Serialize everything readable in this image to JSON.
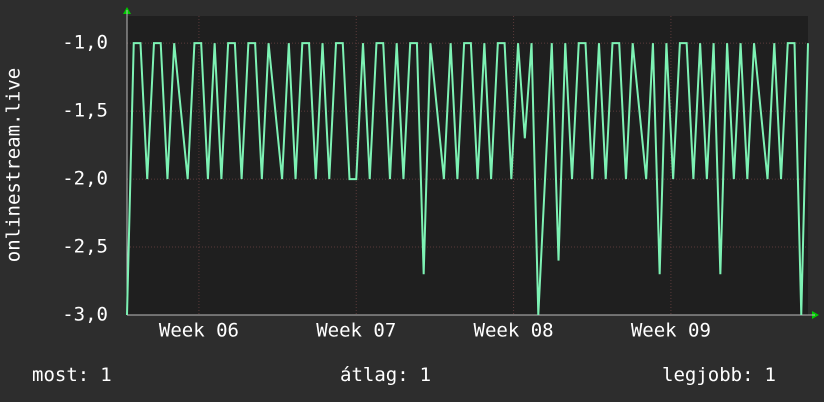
{
  "chart_data": {
    "type": "line",
    "y_label": "onlinestream.live",
    "x": [
      0,
      0.3,
      0.6,
      0.9,
      1.2,
      1.5,
      1.8,
      2.1,
      2.4,
      2.7,
      3,
      3.3,
      3.6,
      3.9,
      4.2,
      4.5,
      4.8,
      5.1,
      5.4,
      5.7,
      6,
      6.3,
      6.6,
      6.9,
      7.2,
      7.5,
      7.8,
      8.1,
      8.4,
      8.7,
      9,
      9.3,
      9.6,
      9.9,
      10.2,
      10.5,
      10.8,
      11.1,
      11.4,
      11.7,
      12,
      12.3,
      12.6,
      12.9,
      13.2,
      13.5,
      13.8,
      14.1,
      14.4,
      14.7,
      15,
      15.3,
      15.6,
      15.9,
      16.2,
      16.5,
      16.8,
      17.1,
      17.4,
      17.7,
      18,
      18.3,
      18.6,
      18.9,
      19.2,
      19.5,
      19.8,
      20.1,
      20.4,
      20.7,
      21,
      21.3,
      21.6,
      21.9,
      22.2,
      22.5,
      22.8,
      23.1,
      23.4,
      23.7,
      24,
      24.3,
      24.6,
      24.9,
      25.2,
      25.5,
      25.8,
      26.1,
      26.4,
      26.7,
      27,
      27.3,
      27.6,
      27.9,
      28.2,
      28.5,
      28.8,
      29.1,
      29.4,
      29.7,
      30,
      30.3
    ],
    "series": [
      {
        "color": "#7df2b4",
        "values": [
          -3,
          -1,
          -1,
          -2,
          -1,
          -1,
          -2,
          -1,
          -1.5,
          -2,
          -1,
          -1,
          -2,
          -1,
          -2,
          -1,
          -1,
          -2,
          -1,
          -1,
          -2,
          -1,
          -1.5,
          -2,
          -1,
          -2,
          -1,
          -1,
          -2,
          -1,
          -2,
          -1,
          -1,
          -2,
          -2,
          -1,
          -2,
          -1,
          -1,
          -2,
          -1,
          -2,
          -1,
          -1,
          -2.7,
          -1,
          -1.5,
          -2,
          -1,
          -2,
          -1,
          -1,
          -2,
          -1,
          -2,
          -1,
          -1,
          -2,
          -1,
          -1.7,
          -1,
          -3,
          -2,
          -1,
          -2.6,
          -1,
          -2,
          -1,
          -1,
          -2,
          -1,
          -2,
          -1,
          -1,
          -2,
          -1,
          -1.5,
          -2,
          -1,
          -2.7,
          -1,
          -2,
          -1,
          -1,
          -2,
          -1,
          -2,
          -1,
          -2.7,
          -1,
          -2,
          -1,
          -2,
          -1,
          -1.5,
          -2,
          -1,
          -2,
          -1,
          -1,
          -3,
          -1
        ]
      }
    ],
    "xlim": [
      0,
      30.3
    ],
    "xticks": [
      {
        "value": 3.2,
        "label": "Week 06"
      },
      {
        "value": 10.2,
        "label": "Week 07"
      },
      {
        "value": 17.2,
        "label": "Week 08"
      },
      {
        "value": 24.2,
        "label": "Week 09"
      }
    ],
    "ylim": [
      -3,
      -0.8
    ],
    "yticks": [
      {
        "value": -3,
        "label": "-3,0"
      },
      {
        "value": -2.5,
        "label": "-2,5"
      },
      {
        "value": -2,
        "label": "-2,0"
      },
      {
        "value": -1.5,
        "label": "-1,5"
      },
      {
        "value": -1,
        "label": "-1,0"
      }
    ],
    "grid": true,
    "stats": [
      {
        "label": "most:",
        "value": 1
      },
      {
        "label": "átlag:",
        "value": 1
      },
      {
        "label": "legjobb:",
        "value": 1
      }
    ]
  }
}
